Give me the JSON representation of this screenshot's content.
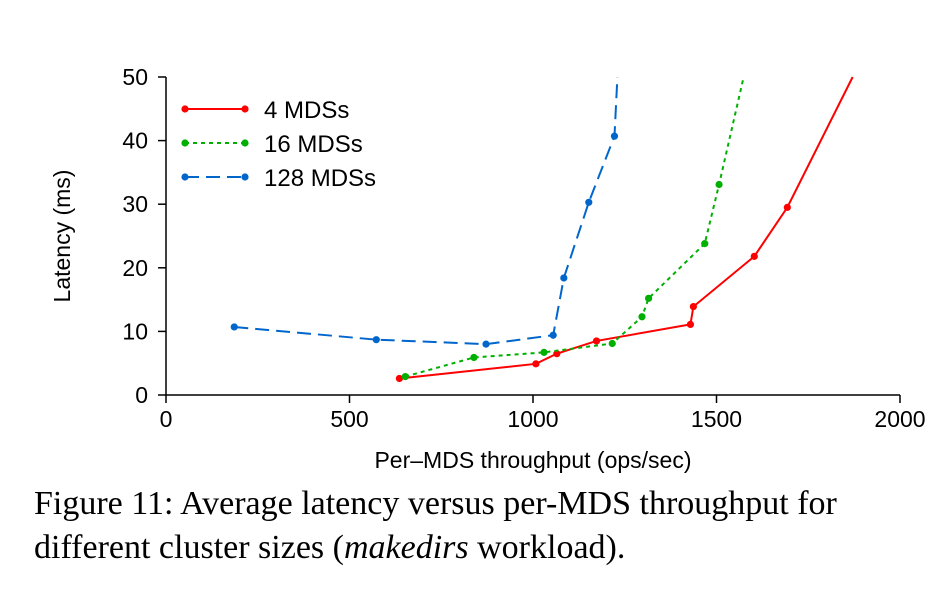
{
  "chart_data": {
    "type": "line",
    "xlabel": "Per–MDS throughput (ops/sec)",
    "ylabel": "Latency (ms)",
    "xlim": [
      0,
      2000
    ],
    "ylim": [
      0,
      50
    ],
    "xticks": [
      0,
      500,
      1000,
      1500,
      2000
    ],
    "yticks": [
      0,
      10,
      20,
      30,
      40,
      50
    ],
    "legend_position": "top-left",
    "grid": false,
    "series": [
      {
        "name": "4 MDSs",
        "color": "#ff0000",
        "dash": "solid",
        "x": [
          636,
          1008,
          1065,
          1173,
          1429,
          1437,
          1603,
          1693
        ],
        "y": [
          2.6,
          4.9,
          6.5,
          8.5,
          11.1,
          13.9,
          21.8,
          29.5
        ],
        "tail": [
          1871,
          50
        ]
      },
      {
        "name": "16 MDSs",
        "color": "#00b000",
        "dash": "dotted",
        "x": [
          652,
          839,
          1030,
          1216,
          1297,
          1315,
          1468,
          1507
        ],
        "y": [
          2.9,
          5.9,
          6.7,
          8.1,
          12.3,
          15.2,
          23.8,
          33.1
        ],
        "tail": [
          1574,
          50
        ]
      },
      {
        "name": "128 MDSs",
        "color": "#0066cc",
        "dash": "dashed",
        "x": [
          186,
          573,
          872,
          1055,
          1084,
          1152,
          1222
        ],
        "y": [
          10.7,
          8.7,
          8.0,
          9.4,
          18.4,
          30.3,
          40.7
        ],
        "tail": [
          1230,
          50
        ]
      }
    ]
  },
  "caption": {
    "prefix": "Figure 11: Average latency versus per-MDS throughput for different cluster sizes (",
    "italic": "makedirs",
    "suffix": " workload)."
  }
}
